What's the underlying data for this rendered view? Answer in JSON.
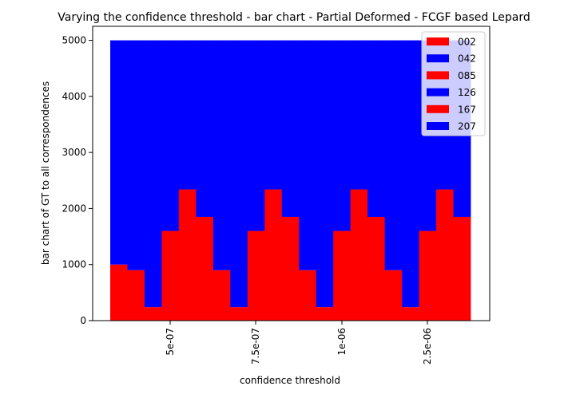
{
  "chart_data": {
    "type": "bar",
    "title": "Varying the confidence threshold - bar chart - Partial Deformed -  FCGF based Lepard",
    "xlabel": "confidence threshold",
    "ylabel": "bar chart of GT to all correspondences",
    "ylim": [
      0,
      5250
    ],
    "yticks": [
      0,
      1000,
      2000,
      3000,
      4000,
      5000
    ],
    "xtick_labels": [
      "5e-07",
      "7.5e-07",
      "1e-06",
      "2.5e-06"
    ],
    "xtick_rotation": "vertical",
    "grid": false,
    "legend_placement": "top-right",
    "total": 5000,
    "categories_count": 21,
    "legend": [
      {
        "label": "002",
        "color": "#ff0000"
      },
      {
        "label": "042",
        "color": "#0000ff"
      },
      {
        "label": "085",
        "color": "#ff0000"
      },
      {
        "label": "126",
        "color": "#0000ff"
      },
      {
        "label": "167",
        "color": "#ff0000"
      },
      {
        "label": "207",
        "color": "#0000ff"
      }
    ],
    "series": [
      {
        "color": "#ff0000",
        "values": [
          1000,
          900,
          240,
          1600,
          2340,
          1850,
          900,
          240,
          1600,
          2340,
          1850,
          900,
          240,
          1600,
          2340,
          1850,
          900,
          240,
          1600,
          2340,
          1850
        ]
      },
      {
        "color": "#0000ff",
        "values": [
          4000,
          4100,
          4760,
          3400,
          2660,
          3150,
          4100,
          4760,
          3400,
          2660,
          3150,
          4100,
          4760,
          3400,
          2660,
          3150,
          4100,
          4760,
          3400,
          2660,
          3150
        ]
      }
    ]
  }
}
